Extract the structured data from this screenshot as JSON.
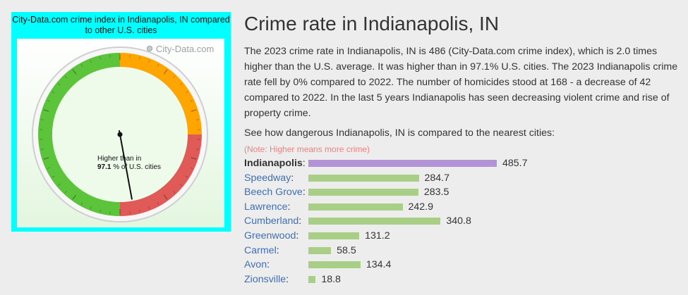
{
  "gauge": {
    "title": "City-Data.com crime index in Indianapolis, IN compared to other U.S. cities",
    "logo": "City-Data.com",
    "higher_than_label": "Higher than in",
    "percent": "97.1",
    "percent_suffix": "% of U.S. cities",
    "needle_value_percent": 97.1,
    "zone_colors": {
      "low": "#5bc43b",
      "mid": "#ffa500",
      "high": "#e05a57"
    }
  },
  "page": {
    "title": "Crime rate in Indianapolis, IN",
    "description": "The 2023 crime rate in Indianapolis, IN is 486 (City-Data.com crime index), which is 2.0 times higher than the U.S. average. It was higher than in 97.1% U.S. cities. The 2023 Indianapolis crime rate fell by 0% compared to 2022. The number of homicides stood at 168 - a decrease of 42 compared to 2022. In the last 5 years Indianapolis has seen decreasing violent crime and rise of property crime.",
    "compare_heading": "See how dangerous Indianapolis, IN is compared to the nearest cities:",
    "note": "(Note: Higher means more crime)"
  },
  "chart_data": {
    "type": "bar",
    "categories": [
      "Indianapolis",
      "Speedway",
      "Beech Grove",
      "Lawrence",
      "Cumberland",
      "Greenwood",
      "Carmel",
      "Avon",
      "Zionsville"
    ],
    "values": [
      485.7,
      284.7,
      283.5,
      242.9,
      340.8,
      131.2,
      58.5,
      134.4,
      18.8
    ],
    "labels": [
      "485.7",
      "284.7",
      "283.5",
      "242.9",
      "340.8",
      "131.2",
      "58.5",
      "134.4",
      "18.8"
    ],
    "highlight_index": 0,
    "colors": {
      "highlight": "#b294d6",
      "normal": "#a9cf86"
    }
  }
}
